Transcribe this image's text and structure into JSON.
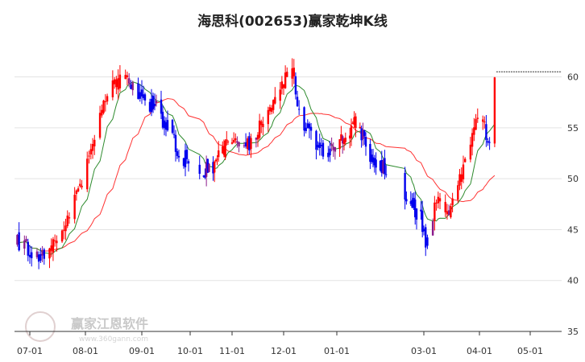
{
  "chart_data": {
    "type": "candlestick",
    "title": "海思科(002653)赢家乾坤K线",
    "x_tick_labels": [
      "07-01",
      "08-01",
      "09-01",
      "10-01",
      "11-01",
      "12-01",
      "01-01",
      "03-01",
      "04-01",
      "05-01"
    ],
    "y_tick_labels": [
      "35",
      "40",
      "45",
      "50",
      "55",
      "60"
    ],
    "ylim": [
      35,
      64
    ],
    "grid": true,
    "last_price_marker": 60.5,
    "colors": {
      "up": "#ff0000",
      "down": "#0000ee",
      "neutral": "#8b1a8b",
      "ma_short": "#2e8b2e",
      "ma_long": "#ff3333",
      "dash": "#333333"
    },
    "key_points": [
      {
        "date": "06-24",
        "close": 43.6
      },
      {
        "date": "07-05",
        "close": 42.2
      },
      {
        "date": "07-20",
        "close": 44.5
      },
      {
        "date": "08-01",
        "close": 51.0
      },
      {
        "date": "08-12",
        "close": 58.5
      },
      {
        "date": "08-22",
        "close": 59.8
      },
      {
        "date": "09-01",
        "close": 57.6
      },
      {
        "date": "09-10",
        "close": 57.0
      },
      {
        "date": "09-25",
        "close": 52.5
      },
      {
        "date": "10-05",
        "close": 50.5
      },
      {
        "date": "10-20",
        "close": 51.5
      },
      {
        "date": "11-01",
        "close": 53.8
      },
      {
        "date": "11-10",
        "close": 53.2
      },
      {
        "date": "11-25",
        "close": 57.5
      },
      {
        "date": "12-05",
        "close": 61.0
      },
      {
        "date": "12-12",
        "close": 55.5
      },
      {
        "date": "12-25",
        "close": 52.0
      },
      {
        "date": "01-05",
        "close": 54.0
      },
      {
        "date": "01-15",
        "close": 55.5
      },
      {
        "date": "01-25",
        "close": 52.0
      },
      {
        "date": "02-08",
        "close": 50.5
      },
      {
        "date": "02-18",
        "close": 48.0
      },
      {
        "date": "02-28",
        "close": 46.5
      },
      {
        "date": "03-02",
        "close": 44.0
      },
      {
        "date": "03-08",
        "close": 47.5
      },
      {
        "date": "03-15",
        "close": 46.5
      },
      {
        "date": "03-22",
        "close": 50.5
      },
      {
        "date": "03-28",
        "close": 54.5
      },
      {
        "date": "04-02",
        "close": 56.0
      },
      {
        "date": "04-08",
        "close": 53.0
      },
      {
        "date": "04-10",
        "close": 60.5
      }
    ]
  },
  "watermark": {
    "name": "赢家江恩软件",
    "url": "www.360gann.com"
  }
}
